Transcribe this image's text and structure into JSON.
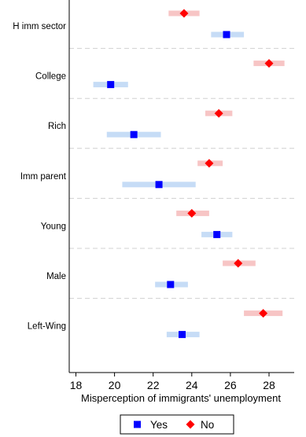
{
  "chart_data": {
    "type": "scatter",
    "subtype": "coefficient-plot-with-confidence-intervals",
    "orientation": "horizontal",
    "categories": [
      "H imm sector",
      "College",
      "Rich",
      "Imm parent",
      "Young",
      "Male",
      "Left-Wing"
    ],
    "xlabel": "Misperception of immigrants' unemployment",
    "xlim": [
      17.6,
      29.3
    ],
    "xticks": [
      18,
      20,
      22,
      24,
      26,
      28
    ],
    "grid": "horizontal dashed separators between categories",
    "legend": {
      "position": "bottom",
      "entries": [
        "Yes",
        "No"
      ]
    },
    "series": [
      {
        "name": "Yes",
        "color": "#0000ff",
        "ci_color": "#c6dcf6",
        "marker": "square",
        "values": [
          25.8,
          19.8,
          21.0,
          22.3,
          25.3,
          22.9,
          23.5
        ],
        "ci": [
          [
            25.0,
            26.7
          ],
          [
            18.9,
            20.7
          ],
          [
            19.6,
            22.4
          ],
          [
            20.4,
            24.2
          ],
          [
            24.5,
            26.1
          ],
          [
            22.1,
            23.8
          ],
          [
            22.7,
            24.4
          ]
        ]
      },
      {
        "name": "No",
        "color": "#ff0000",
        "ci_color": "#f7c5c5",
        "marker": "diamond",
        "values": [
          23.6,
          28.0,
          25.4,
          24.9,
          24.0,
          26.4,
          27.7
        ],
        "ci": [
          [
            22.8,
            24.4
          ],
          [
            27.2,
            28.8
          ],
          [
            24.7,
            26.1
          ],
          [
            24.3,
            25.6
          ],
          [
            23.2,
            24.9
          ],
          [
            25.6,
            27.3
          ],
          [
            26.7,
            28.7
          ]
        ]
      }
    ]
  }
}
